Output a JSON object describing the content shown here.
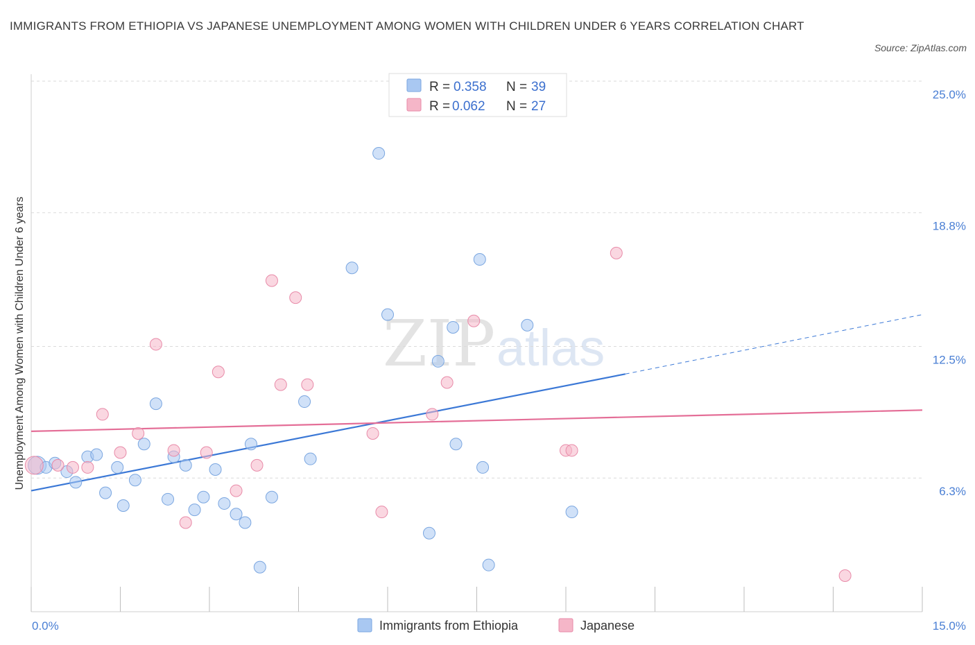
{
  "title": "IMMIGRANTS FROM ETHIOPIA VS JAPANESE UNEMPLOYMENT AMONG WOMEN WITH CHILDREN UNDER 6 YEARS CORRELATION CHART",
  "source": "Source: ZipAtlas.com",
  "watermark": {
    "zip": "ZIP",
    "atlas": "atlas"
  },
  "legend_top": [
    {
      "r_label": "R = ",
      "r_value": "0.358",
      "n_label": "N = ",
      "n_value": "39",
      "color": "#a9c8f2"
    },
    {
      "r_label": "R = ",
      "r_value": "0.062",
      "n_label": "N = ",
      "n_value": "27",
      "color": "#f5b6c8"
    }
  ],
  "legend_bottom": [
    {
      "label": "Immigrants from Ethiopia",
      "color": "#a9c8f2"
    },
    {
      "label": "Japanese",
      "color": "#f5b6c8"
    }
  ],
  "chart_data": {
    "type": "scatter",
    "title": "IMMIGRANTS FROM ETHIOPIA VS JAPANESE UNEMPLOYMENT AMONG WOMEN WITH CHILDREN UNDER 6 YEARS CORRELATION CHART",
    "xlabel": "",
    "ylabel": "Unemployment Among Women with Children Under 6 years",
    "xlim": [
      0,
      15
    ],
    "ylim": [
      0,
      25
    ],
    "x_tick_labels": [
      "0.0%",
      "15.0%"
    ],
    "y_ticks": [
      6.3,
      12.5,
      18.8,
      25.0
    ],
    "y_tick_labels": [
      "6.3%",
      "12.5%",
      "18.8%",
      "25.0%"
    ],
    "grid": true,
    "series": [
      {
        "name": "Immigrants from Ethiopia",
        "color": "#a9c8f2",
        "stroke": "#7aa6e0",
        "points": [
          [
            0.1,
            6.9
          ],
          [
            0.25,
            6.8
          ],
          [
            0.4,
            7.0
          ],
          [
            0.6,
            6.6
          ],
          [
            0.75,
            6.1
          ],
          [
            0.95,
            7.3
          ],
          [
            1.1,
            7.4
          ],
          [
            1.25,
            5.6
          ],
          [
            1.45,
            6.8
          ],
          [
            1.55,
            5.0
          ],
          [
            1.75,
            6.2
          ],
          [
            1.9,
            7.9
          ],
          [
            2.1,
            9.8
          ],
          [
            2.3,
            5.3
          ],
          [
            2.4,
            7.3
          ],
          [
            2.6,
            6.9
          ],
          [
            2.75,
            4.8
          ],
          [
            2.9,
            5.4
          ],
          [
            3.1,
            6.7
          ],
          [
            3.25,
            5.1
          ],
          [
            3.45,
            4.6
          ],
          [
            3.6,
            4.2
          ],
          [
            3.7,
            7.9
          ],
          [
            3.85,
            2.1
          ],
          [
            4.05,
            5.4
          ],
          [
            4.6,
            9.9
          ],
          [
            4.7,
            7.2
          ],
          [
            5.4,
            16.2
          ],
          [
            5.85,
            21.6
          ],
          [
            6.0,
            14.0
          ],
          [
            6.7,
            3.7
          ],
          [
            6.85,
            11.8
          ],
          [
            7.1,
            13.4
          ],
          [
            7.15,
            7.9
          ],
          [
            7.55,
            16.6
          ],
          [
            7.6,
            6.8
          ],
          [
            7.7,
            2.2
          ],
          [
            8.35,
            13.5
          ],
          [
            9.1,
            4.7
          ]
        ]
      },
      {
        "name": "Japanese",
        "color": "#f5b6c8",
        "stroke": "#e88aa8",
        "points": [
          [
            0.05,
            6.9
          ],
          [
            0.45,
            6.9
          ],
          [
            0.7,
            6.8
          ],
          [
            0.95,
            6.8
          ],
          [
            1.2,
            9.3
          ],
          [
            1.5,
            7.5
          ],
          [
            1.8,
            8.4
          ],
          [
            2.1,
            12.6
          ],
          [
            2.4,
            7.6
          ],
          [
            2.6,
            4.2
          ],
          [
            2.95,
            7.5
          ],
          [
            3.15,
            11.3
          ],
          [
            3.45,
            5.7
          ],
          [
            3.8,
            6.9
          ],
          [
            4.05,
            15.6
          ],
          [
            4.2,
            10.7
          ],
          [
            4.45,
            14.8
          ],
          [
            4.65,
            10.7
          ],
          [
            5.75,
            8.4
          ],
          [
            5.9,
            4.7
          ],
          [
            6.75,
            9.3
          ],
          [
            7.0,
            10.8
          ],
          [
            7.45,
            13.7
          ],
          [
            9.0,
            7.6
          ],
          [
            9.1,
            7.6
          ],
          [
            9.85,
            16.9
          ],
          [
            13.7,
            1.7
          ]
        ]
      }
    ],
    "trend_lines": [
      {
        "series": "Immigrants from Ethiopia",
        "color": "#3b78d6",
        "x_start": 0,
        "y_start": 5.7,
        "x_end": 10.0,
        "y_end": 11.2,
        "dashed_to_x": 15,
        "dashed_to_y": 14.0
      },
      {
        "series": "Japanese",
        "color": "#e46e97",
        "x_start": 0,
        "y_start": 8.5,
        "x_end": 15,
        "y_end": 9.5
      }
    ]
  }
}
